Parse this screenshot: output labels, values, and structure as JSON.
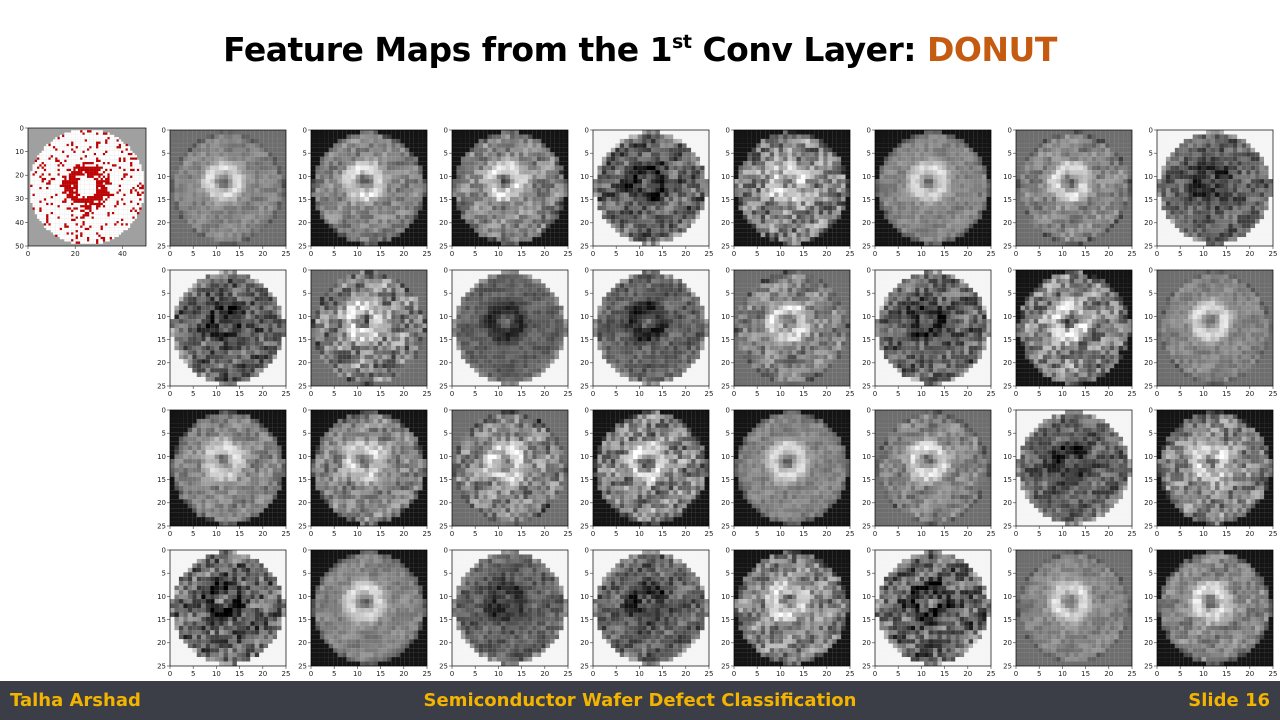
{
  "slide": {
    "title_main": "Feature Maps from the 1",
    "title_sup": "st",
    "title_rest": " Conv Layer: ",
    "title_accent": "DONUT",
    "accent_color": "#c55a11"
  },
  "input_plot": {
    "colormap": "white-grey-red",
    "defect_color": "#c00000",
    "wafer_color": "#ffffff",
    "background_color": "#a0a0a0",
    "y_ticks": [
      "0",
      "10",
      "20",
      "30",
      "40",
      "50"
    ],
    "x_ticks": [
      "0",
      "20",
      "40"
    ]
  },
  "feature_maps": {
    "rows": 4,
    "cols": 8,
    "count": 32,
    "colormap": "grayscale",
    "y_ticks": [
      "0",
      "5",
      "10",
      "15",
      "20",
      "25"
    ],
    "x_ticks": [
      "0",
      "5",
      "10",
      "15",
      "20",
      "25"
    ],
    "pattern": "donut ring response; polarity per map (1 = bright ring, -1 = dark ring)",
    "polarity": [
      1,
      1,
      1,
      -1,
      1,
      1,
      1,
      -1,
      -1,
      1,
      -1,
      -1,
      1,
      -1,
      1,
      1,
      1,
      1,
      1,
      1,
      1,
      1,
      -1,
      1,
      -1,
      1,
      -1,
      -1,
      1,
      -1,
      1,
      1
    ]
  },
  "footer": {
    "author": "Talha Arshad",
    "topic": "Semiconductor Wafer Defect Classification",
    "slide_number": "Slide 16",
    "background_color": "#3b3e46",
    "text_color": "#f2b400"
  }
}
